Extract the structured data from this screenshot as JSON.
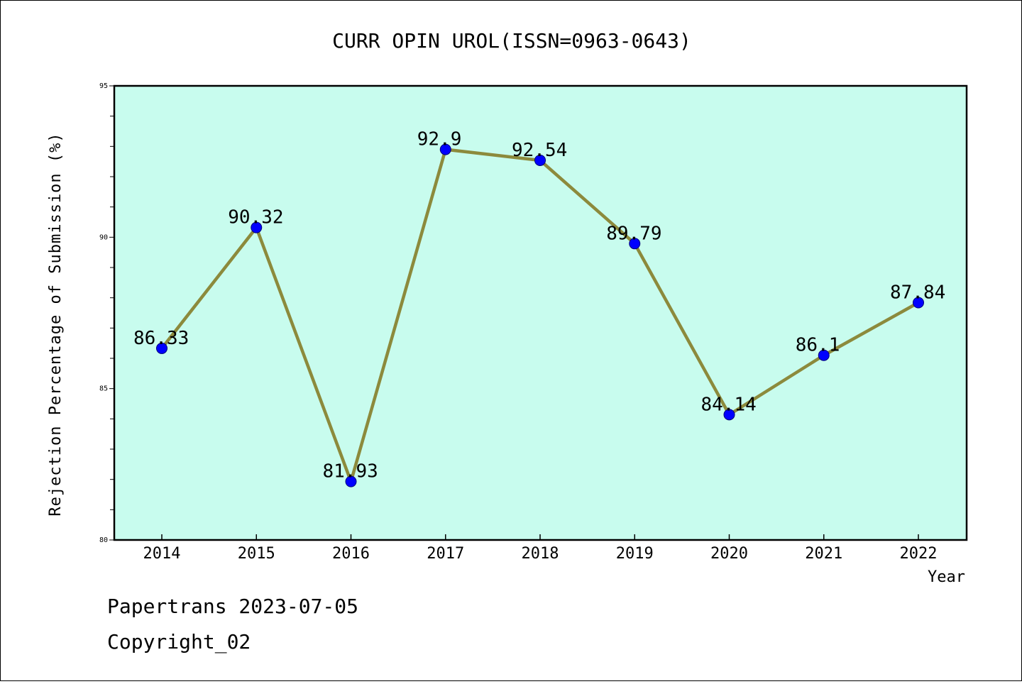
{
  "chart_data": {
    "type": "line",
    "title": "CURR OPIN UROL(ISSN=0963-0643)",
    "xlabel": "Year",
    "ylabel": "Rejection Percentage of Submission (%)",
    "ylim": [
      80,
      95
    ],
    "yticks": [
      "80",
      "85",
      "90",
      "95"
    ],
    "categories": [
      "2014",
      "2015",
      "2016",
      "2017",
      "2018",
      "2019",
      "2020",
      "2021",
      "2022"
    ],
    "values": [
      86.33,
      90.32,
      81.93,
      92.9,
      92.54,
      89.79,
      84.14,
      86.1,
      87.84
    ],
    "data_labels": [
      "86.33",
      "90.32",
      "81.93",
      "92.9",
      "92.54",
      "89.79",
      "84.14",
      "86.1",
      "87.84"
    ],
    "grid": false,
    "legend": "none",
    "colors": {
      "plot_background": "#c8fcee",
      "line": "#8c8a3c",
      "marker": "#0000ff"
    }
  },
  "footer": {
    "line1": "Papertrans 2023-07-05",
    "line2": "Copyright_02"
  }
}
